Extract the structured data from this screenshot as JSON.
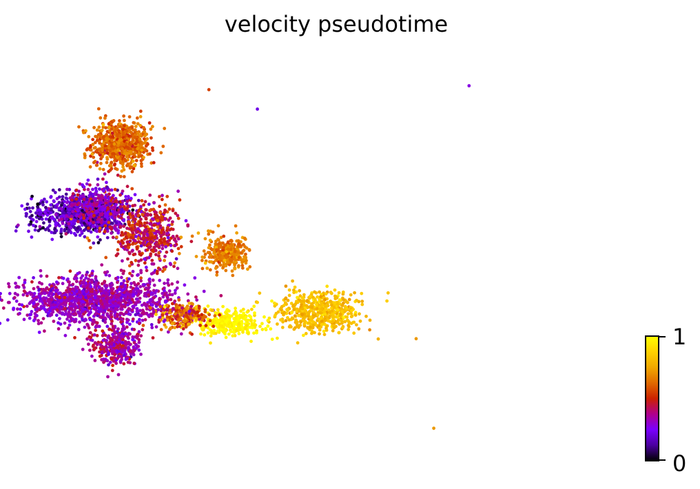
{
  "chart_data": {
    "type": "scatter",
    "title": "velocity pseudotime",
    "xlabel": "",
    "ylabel": "",
    "axes_visible": false,
    "grid": false,
    "colorbar": {
      "placement": "bottom-right",
      "colormap": "gnuplot",
      "range": [
        0,
        1
      ],
      "tick_labels": [
        "1",
        "0"
      ],
      "stops": [
        "#000000",
        "#4b00a0",
        "#7a00ff",
        "#b0008c",
        "#cc2200",
        "#e06a00",
        "#f0a800",
        "#ffd200",
        "#ffff00"
      ]
    },
    "regions": [
      {
        "name": "top-upper cluster",
        "cx": 0.18,
        "cy": 0.78,
        "rx": 0.06,
        "ry": 0.055,
        "pseudotime": 0.62,
        "spread": 0.06,
        "n": 700
      },
      {
        "name": "top-left band",
        "cx": 0.09,
        "cy": 0.6,
        "rx": 0.1,
        "ry": 0.045,
        "pseudotime": 0.18,
        "spread": 0.08,
        "n": 750
      },
      {
        "name": "middle-left band",
        "cx": 0.13,
        "cy": 0.62,
        "rx": 0.06,
        "ry": 0.05,
        "pseudotime": 0.32,
        "spread": 0.1,
        "n": 350
      },
      {
        "name": "middle band",
        "cx": 0.24,
        "cy": 0.55,
        "rx": 0.07,
        "ry": 0.07,
        "pseudotime": 0.45,
        "spread": 0.1,
        "n": 500
      },
      {
        "name": "lower-left band",
        "cx": 0.12,
        "cy": 0.38,
        "rx": 0.16,
        "ry": 0.055,
        "pseudotime": 0.33,
        "spread": 0.06,
        "n": 1300
      },
      {
        "name": "lower-left extension",
        "cx": 0.17,
        "cy": 0.26,
        "rx": 0.05,
        "ry": 0.045,
        "pseudotime": 0.36,
        "spread": 0.08,
        "n": 300
      },
      {
        "name": "middle-right branch",
        "cx": 0.42,
        "cy": 0.5,
        "rx": 0.045,
        "ry": 0.04,
        "pseudotime": 0.66,
        "spread": 0.05,
        "n": 320
      },
      {
        "name": "lower-right branch",
        "cx": 0.63,
        "cy": 0.35,
        "rx": 0.09,
        "ry": 0.045,
        "pseudotime": 0.82,
        "spread": 0.05,
        "n": 520
      },
      {
        "name": "right-bottom yellow",
        "cx": 0.43,
        "cy": 0.32,
        "rx": 0.07,
        "ry": 0.03,
        "pseudotime": 0.97,
        "spread": 0.03,
        "n": 300
      },
      {
        "name": "bridge",
        "cx": 0.32,
        "cy": 0.34,
        "rx": 0.05,
        "ry": 0.03,
        "pseudotime": 0.6,
        "spread": 0.15,
        "n": 250
      }
    ],
    "outliers": [
      {
        "x": 0.97,
        "y": 0.93,
        "pseudotime": 0.28
      },
      {
        "x": 0.85,
        "y": 0.28,
        "pseudotime": 0.72
      },
      {
        "x": 0.89,
        "y": 0.05,
        "pseudotime": 0.72
      },
      {
        "x": 0.49,
        "y": 0.87,
        "pseudotime": 0.22
      },
      {
        "x": 0.38,
        "y": 0.92,
        "pseudotime": 0.55
      }
    ]
  }
}
